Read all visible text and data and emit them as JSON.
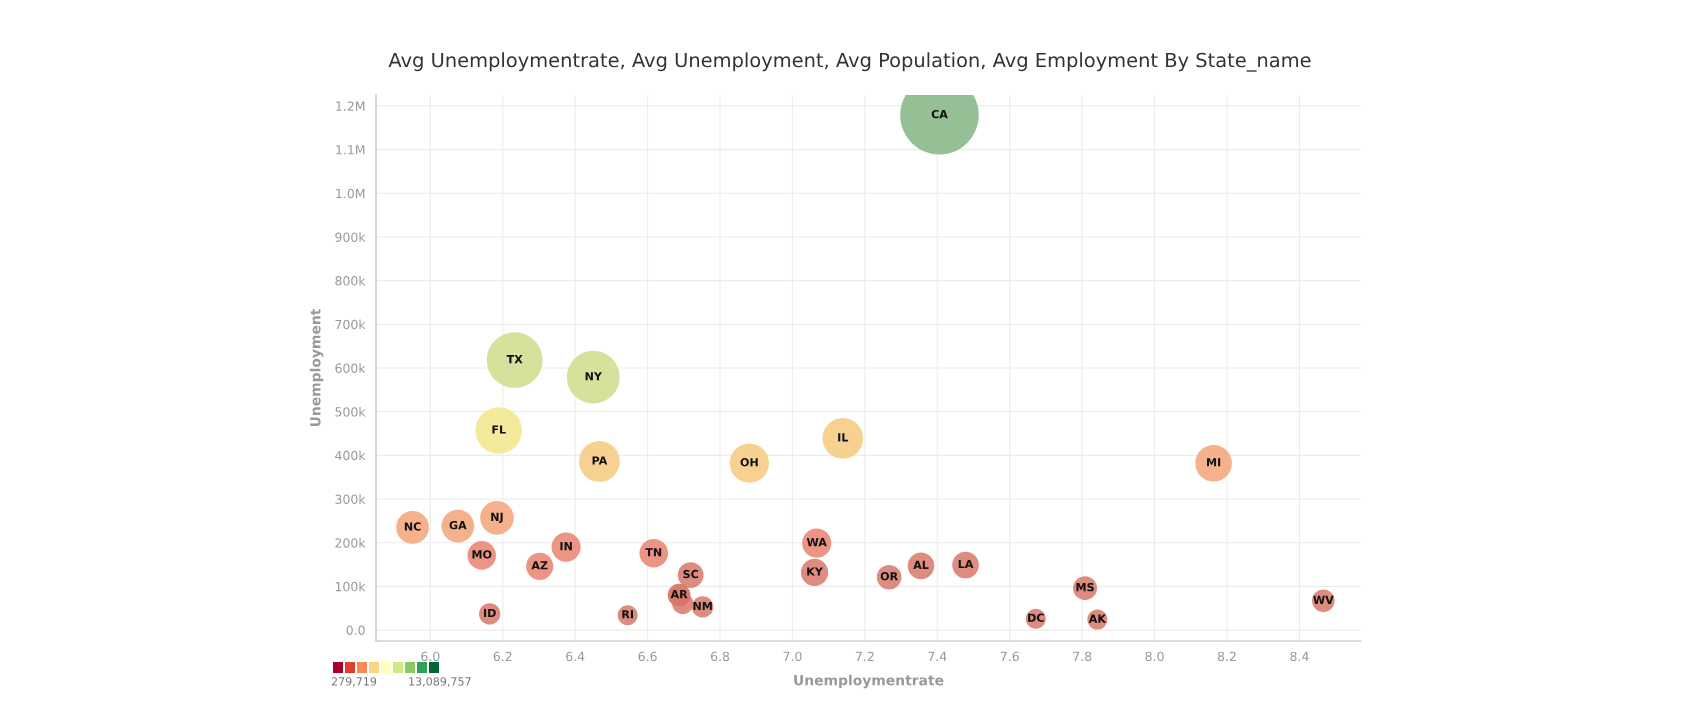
{
  "chart_data": {
    "type": "bubble",
    "title": "Avg Unemploymentrate, Avg Unemployment, Avg Population, Avg Employment By State_name",
    "xlabel": "Unemploymentrate",
    "ylabel": "Unemployment",
    "x": [
      7.406,
      6.233,
      6.45,
      6.189,
      6.467,
      6.881,
      7.139,
      8.163,
      5.951,
      6.076,
      6.184,
      6.142,
      6.302,
      6.375,
      6.617,
      6.719,
      6.697,
      6.687,
      6.752,
      6.164,
      6.545,
      7.067,
      7.061,
      7.267,
      7.355,
      7.478,
      7.808,
      7.672,
      7.842,
      8.466
    ],
    "values": [
      1179000,
      618000,
      579000,
      457000,
      386000,
      382000,
      439000,
      382000,
      235000,
      238000,
      257000,
      171000,
      146000,
      190000,
      176000,
      126000,
      61000,
      80000,
      53000,
      37000,
      34000,
      199000,
      132000,
      121000,
      147000,
      149000,
      96000,
      26000,
      24000,
      67000
    ],
    "sizes": [
      1,
      0.504,
      0.451,
      0.349,
      0.269,
      0.249,
      0.269,
      0.217,
      0.174,
      0.174,
      0.183,
      0.132,
      0.12,
      0.138,
      0.132,
      0.108,
      0.074,
      0.084,
      0.074,
      0.074,
      0.065,
      0.138,
      0.12,
      0.098,
      0.115,
      0.115,
      0.093,
      0.065,
      0.065,
      0.083
    ],
    "colors": [
      "#8fbc8f",
      "#d4e096",
      "#d4e096",
      "#f3e996",
      "#f5cf8a",
      "#f5cf8a",
      "#f5cf8a",
      "#f4ad86",
      "#f4ad86",
      "#f4ad86",
      "#f4ad86",
      "#eb8f7e",
      "#eb8f7e",
      "#eb8f7e",
      "#eb8f7e",
      "#db8678",
      "#db8678",
      "#d97567",
      "#db8678",
      "#db8678",
      "#db8678",
      "#eb8f7e",
      "#db8678",
      "#db8678",
      "#db8678",
      "#db8678",
      "#db8678",
      "#db8678",
      "#db8678",
      "#db8678"
    ],
    "annotations": [
      {
        "text": "CA",
        "x": 7.406,
        "y": 1179000
      },
      {
        "text": "TX",
        "x": 6.233,
        "y": 618000
      },
      {
        "text": "NY",
        "x": 6.45,
        "y": 579000
      },
      {
        "text": "FL",
        "x": 6.189,
        "y": 457000
      },
      {
        "text": "PA",
        "x": 6.467,
        "y": 386000
      },
      {
        "text": "OH",
        "x": 6.881,
        "y": 382000
      },
      {
        "text": "IL",
        "x": 7.139,
        "y": 439000
      },
      {
        "text": "MI",
        "x": 8.163,
        "y": 382000
      },
      {
        "text": "NC",
        "x": 5.951,
        "y": 235000
      },
      {
        "text": "GA",
        "x": 6.076,
        "y": 238000
      },
      {
        "text": "NJ",
        "x": 6.184,
        "y": 257000
      },
      {
        "text": "MO",
        "x": 6.142,
        "y": 171000
      },
      {
        "text": "AZ",
        "x": 6.302,
        "y": 146000
      },
      {
        "text": "IN",
        "x": 6.375,
        "y": 190000
      },
      {
        "text": "TN",
        "x": 6.617,
        "y": 176000
      },
      {
        "text": "SC",
        "x": 6.719,
        "y": 126000
      },
      {
        "text": "AR",
        "x": 6.687,
        "y": 80000
      },
      {
        "text": "NM",
        "x": 6.752,
        "y": 53000
      },
      {
        "text": "ID",
        "x": 6.164,
        "y": 37000
      },
      {
        "text": "RI",
        "x": 6.545,
        "y": 34000
      },
      {
        "text": "WA",
        "x": 7.067,
        "y": 199000
      },
      {
        "text": "KY",
        "x": 7.061,
        "y": 132000
      },
      {
        "text": "OR",
        "x": 7.267,
        "y": 121000
      },
      {
        "text": "AL",
        "x": 7.355,
        "y": 147000
      },
      {
        "text": "LA",
        "x": 7.478,
        "y": 149000
      },
      {
        "text": "MS",
        "x": 7.808,
        "y": 96000
      },
      {
        "text": "DC",
        "x": 7.672,
        "y": 26000
      },
      {
        "text": "AK",
        "x": 7.842,
        "y": 24000
      },
      {
        "text": "WV",
        "x": 8.466,
        "y": 67000
      },
      "279,719",
      "13,089,757"
    ],
    "xlim": [
      5.85,
      8.57
    ],
    "ylim": [
      -25000,
      1225000
    ],
    "xticks": [
      {
        "value": 6,
        "label": "6.0"
      },
      6.2,
      6.4,
      6.6,
      6.8,
      {
        "value": 7,
        "label": "7.0"
      },
      7.2,
      7.4,
      7.6,
      7.8,
      {
        "value": 8,
        "label": "8.0"
      },
      8.2,
      8.4
    ],
    "yticks": [
      {
        "value": 0,
        "label": "0.0"
      },
      {
        "value": 100000,
        "label": "100k"
      },
      {
        "value": 200000,
        "label": "200k"
      },
      {
        "value": 300000,
        "label": "300k"
      },
      {
        "value": 400000,
        "label": "400k"
      },
      {
        "value": 500000,
        "label": "500k"
      },
      {
        "value": 600000,
        "label": "600k"
      },
      {
        "value": 700000,
        "label": "700k"
      },
      {
        "value": 800000,
        "label": "800k"
      },
      {
        "value": 900000,
        "label": "900k"
      },
      {
        "value": 1000000,
        "label": "1.0M"
      },
      {
        "value": 1100000,
        "label": "1.1M"
      },
      {
        "value": 1200000,
        "label": "1.2M"
      }
    ],
    "grid": true
  }
}
